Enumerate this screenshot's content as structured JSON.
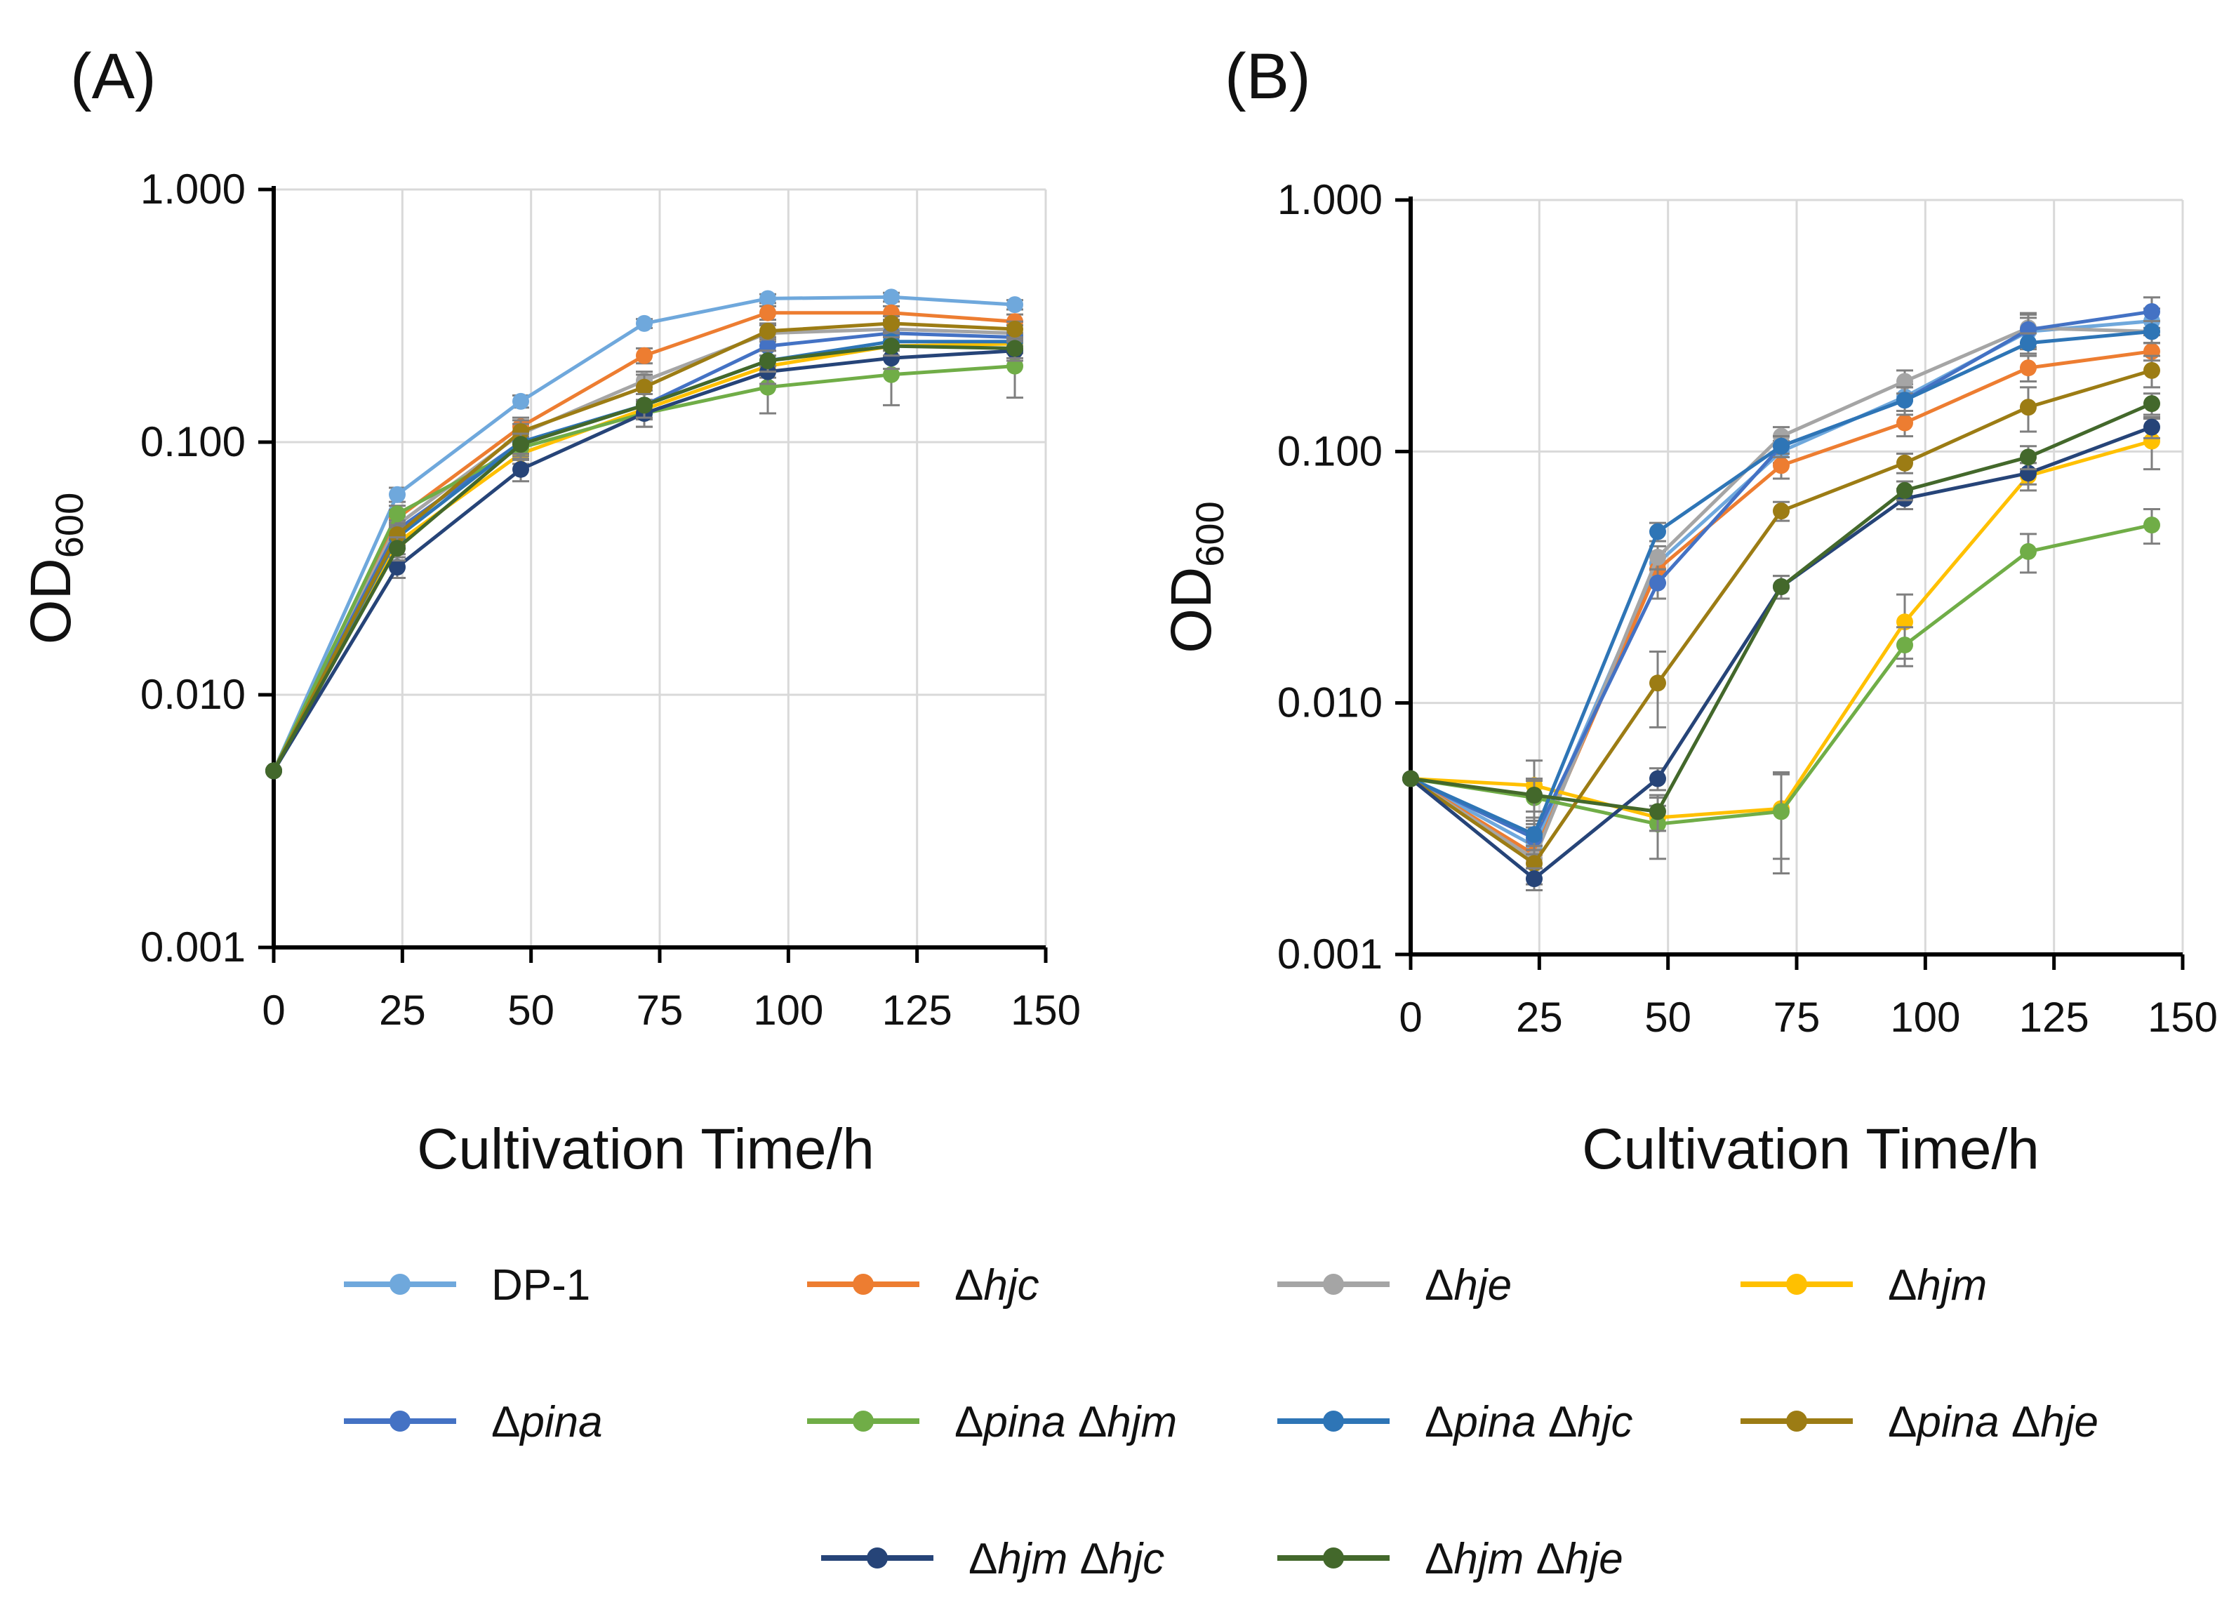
{
  "legend": [
    {
      "id": "dp1",
      "name": "DP-1",
      "color": "#6fa8dc",
      "parts": [
        {
          "t": "DP-1",
          "i": false
        }
      ]
    },
    {
      "id": "hjc",
      "name": "Δhjc",
      "color": "#ed7d31",
      "parts": [
        {
          "t": "Δ",
          "i": false
        },
        {
          "t": "hjc",
          "i": true
        }
      ]
    },
    {
      "id": "hje",
      "name": "Δhje",
      "color": "#a5a5a5",
      "parts": [
        {
          "t": "Δ",
          "i": false
        },
        {
          "t": "hje",
          "i": true
        }
      ]
    },
    {
      "id": "hjm",
      "name": "Δhjm",
      "color": "#ffc000",
      "parts": [
        {
          "t": "Δ",
          "i": false
        },
        {
          "t": "hjm",
          "i": true
        }
      ]
    },
    {
      "id": "pina",
      "name": "Δpina",
      "color": "#4472c4",
      "parts": [
        {
          "t": "Δ",
          "i": false
        },
        {
          "t": "pina",
          "i": true
        }
      ]
    },
    {
      "id": "pina_hjm",
      "name": "Δpina Δhjm",
      "color": "#70ad47",
      "parts": [
        {
          "t": "Δ",
          "i": false
        },
        {
          "t": "pina ",
          "i": true
        },
        {
          "t": "Δ",
          "i": false
        },
        {
          "t": "hjm",
          "i": true
        }
      ]
    },
    {
      "id": "pina_hjc",
      "name": "Δpina Δhjc",
      "color": "#2e75b6",
      "parts": [
        {
          "t": "Δ",
          "i": false
        },
        {
          "t": "pina ",
          "i": true
        },
        {
          "t": "Δ",
          "i": false
        },
        {
          "t": "hjc",
          "i": true
        }
      ]
    },
    {
      "id": "pina_hje",
      "name": "Δpina Δhje",
      "color": "#9c7c14",
      "parts": [
        {
          "t": "Δ",
          "i": false
        },
        {
          "t": "pina ",
          "i": true
        },
        {
          "t": "Δ",
          "i": false
        },
        {
          "t": "hje",
          "i": true
        }
      ]
    },
    {
      "id": "hjm_hjc",
      "name": "Δhjm Δhjc",
      "color": "#264478",
      "parts": [
        {
          "t": "Δ",
          "i": false
        },
        {
          "t": "hjm ",
          "i": true
        },
        {
          "t": "Δ",
          "i": false
        },
        {
          "t": "hjc",
          "i": true
        }
      ]
    },
    {
      "id": "hjm_hje",
      "name": "Δhjm Δhje",
      "color": "#43682b",
      "parts": [
        {
          "t": "Δ",
          "i": false
        },
        {
          "t": "hjm ",
          "i": true
        },
        {
          "t": "Δ",
          "i": false
        },
        {
          "t": "hje",
          "i": true
        }
      ]
    }
  ],
  "chart_data": [
    {
      "type": "line",
      "panel_label": "(A)",
      "xlabel": "Cultivation Time/h",
      "ylabel": "OD",
      "ylabel_sub": "600",
      "yscale": "log",
      "xlim": [
        0,
        150
      ],
      "ylim": [
        0.001,
        1
      ],
      "xticks": [
        0,
        25,
        50,
        75,
        100,
        125,
        150
      ],
      "xtick_labels": [
        "0",
        "25",
        "50",
        "75",
        "100",
        "125",
        "150"
      ],
      "yticks": [
        0.001,
        0.01,
        0.1,
        1
      ],
      "ytick_labels": [
        "0.001",
        "0.010",
        "0.100",
        "1.000"
      ],
      "grid": true,
      "x": [
        0,
        24,
        48,
        72,
        96,
        120,
        144
      ],
      "series": [
        {
          "id": "dp1",
          "values": [
            0.005,
            0.062,
            0.145,
            0.295,
            0.37,
            0.375,
            0.35
          ],
          "err": [
            0,
            0.004,
            0.008,
            0.012,
            0.015,
            0.015,
            0.015
          ]
        },
        {
          "id": "hjc",
          "values": [
            0.005,
            0.05,
            0.115,
            0.22,
            0.325,
            0.325,
            0.3
          ],
          "err": [
            0,
            0.004,
            0.01,
            0.015,
            0.02,
            0.02,
            0.02
          ]
        },
        {
          "id": "hje",
          "values": [
            0.005,
            0.047,
            0.108,
            0.175,
            0.27,
            0.28,
            0.27
          ],
          "err": [
            0,
            0.004,
            0.01,
            0.015,
            0.02,
            0.02,
            0.02
          ]
        },
        {
          "id": "hjm",
          "values": [
            0.005,
            0.04,
            0.09,
            0.135,
            0.2,
            0.24,
            0.245
          ],
          "err": [
            0,
            0.004,
            0.008,
            0.012,
            0.02,
            0.025,
            0.02
          ]
        },
        {
          "id": "pina",
          "values": [
            0.005,
            0.045,
            0.1,
            0.14,
            0.24,
            0.27,
            0.26
          ],
          "err": [
            0,
            0.004,
            0.01,
            0.015,
            0.02,
            0.02,
            0.02
          ]
        },
        {
          "id": "pina_hjm",
          "values": [
            0.005,
            0.052,
            0.095,
            0.13,
            0.165,
            0.185,
            0.2
          ],
          "err": [
            0,
            0.004,
            0.01,
            0.015,
            0.035,
            0.045,
            0.05
          ]
        },
        {
          "id": "pina_hjc",
          "values": [
            0.005,
            0.042,
            0.1,
            0.14,
            0.21,
            0.25,
            0.25
          ],
          "err": [
            0,
            0.004,
            0.01,
            0.015,
            0.02,
            0.02,
            0.02
          ]
        },
        {
          "id": "pina_hje",
          "values": [
            0.005,
            0.043,
            0.11,
            0.165,
            0.275,
            0.295,
            0.28
          ],
          "err": [
            0,
            0.004,
            0.012,
            0.02,
            0.02,
            0.02,
            0.02
          ]
        },
        {
          "id": "hjm_hjc",
          "values": [
            0.005,
            0.032,
            0.078,
            0.13,
            0.19,
            0.215,
            0.23
          ],
          "err": [
            0,
            0.003,
            0.008,
            0.015,
            0.02,
            0.02,
            0.02
          ]
        },
        {
          "id": "hjm_hje",
          "values": [
            0.005,
            0.038,
            0.098,
            0.14,
            0.21,
            0.24,
            0.235
          ],
          "err": [
            0,
            0.004,
            0.01,
            0.015,
            0.02,
            0.02,
            0.02
          ]
        }
      ]
    },
    {
      "type": "line",
      "panel_label": "(B)",
      "xlabel": "Cultivation Time/h",
      "ylabel": "OD",
      "ylabel_sub": "600",
      "yscale": "log",
      "xlim": [
        0,
        150
      ],
      "ylim": [
        0.001,
        1
      ],
      "xticks": [
        0,
        25,
        50,
        75,
        100,
        125,
        150
      ],
      "xtick_labels": [
        "0",
        "25",
        "50",
        "75",
        "100",
        "125",
        "150"
      ],
      "yticks": [
        0.001,
        0.01,
        0.1,
        1
      ],
      "ytick_labels": [
        "0.001",
        "0.010",
        "0.100",
        "1.000"
      ],
      "grid": true,
      "x": [
        0,
        24,
        48,
        72,
        96,
        120,
        144
      ],
      "series": [
        {
          "id": "dp1",
          "values": [
            0.005,
            0.0027,
            0.036,
            0.1,
            0.165,
            0.3,
            0.33
          ],
          "err": [
            0,
            0.0005,
            0.004,
            0.01,
            0.02,
            0.04,
            0.04
          ]
        },
        {
          "id": "hjc",
          "values": [
            0.005,
            0.0025,
            0.034,
            0.088,
            0.13,
            0.215,
            0.25
          ],
          "err": [
            0,
            0.0004,
            0.004,
            0.01,
            0.015,
            0.025,
            0.02
          ]
        },
        {
          "id": "hje",
          "values": [
            0.005,
            0.0024,
            0.038,
            0.115,
            0.19,
            0.31,
            0.3
          ],
          "err": [
            0,
            0.0004,
            0.004,
            0.01,
            0.02,
            0.04,
            0.03
          ]
        },
        {
          "id": "hjm",
          "values": [
            0.005,
            0.0047,
            0.0035,
            0.0038,
            0.021,
            0.08,
            0.11
          ],
          "err": [
            0,
            0.0012,
            0.0004,
            0.0014,
            0.006,
            0.01,
            0.025
          ]
        },
        {
          "id": "pina",
          "values": [
            0.005,
            0.0029,
            0.03,
            0.105,
            0.16,
            0.305,
            0.36
          ],
          "err": [
            0,
            0.0004,
            0.004,
            0.01,
            0.02,
            0.05,
            0.05
          ]
        },
        {
          "id": "pina_hjm",
          "values": [
            0.005,
            0.0042,
            0.0033,
            0.0037,
            0.017,
            0.04,
            0.051
          ],
          "err": [
            0,
            0.0008,
            0.0009,
            0.0016,
            0.003,
            0.007,
            0.008
          ]
        },
        {
          "id": "pina_hjc",
          "values": [
            0.005,
            0.003,
            0.048,
            0.105,
            0.16,
            0.27,
            0.3
          ],
          "err": [
            0,
            0.0004,
            0.004,
            0.01,
            0.02,
            0.025,
            0.03
          ]
        },
        {
          "id": "pina_hje",
          "values": [
            0.005,
            0.0023,
            0.012,
            0.058,
            0.09,
            0.15,
            0.21
          ],
          "err": [
            0,
            0.0004,
            0.004,
            0.005,
            0.008,
            0.03,
            0.03
          ]
        },
        {
          "id": "hjm_hjc",
          "values": [
            0.005,
            0.002,
            0.005,
            0.029,
            0.065,
            0.082,
            0.125
          ],
          "err": [
            0,
            0.0002,
            0.0005,
            0.003,
            0.006,
            0.008,
            0.012
          ]
        },
        {
          "id": "hjm_hje",
          "values": [
            0.005,
            0.0043,
            0.0037,
            0.029,
            0.07,
            0.095,
            0.155
          ],
          "err": [
            0,
            0.0006,
            0.0006,
            0.003,
            0.006,
            0.01,
            0.015
          ]
        }
      ]
    }
  ]
}
